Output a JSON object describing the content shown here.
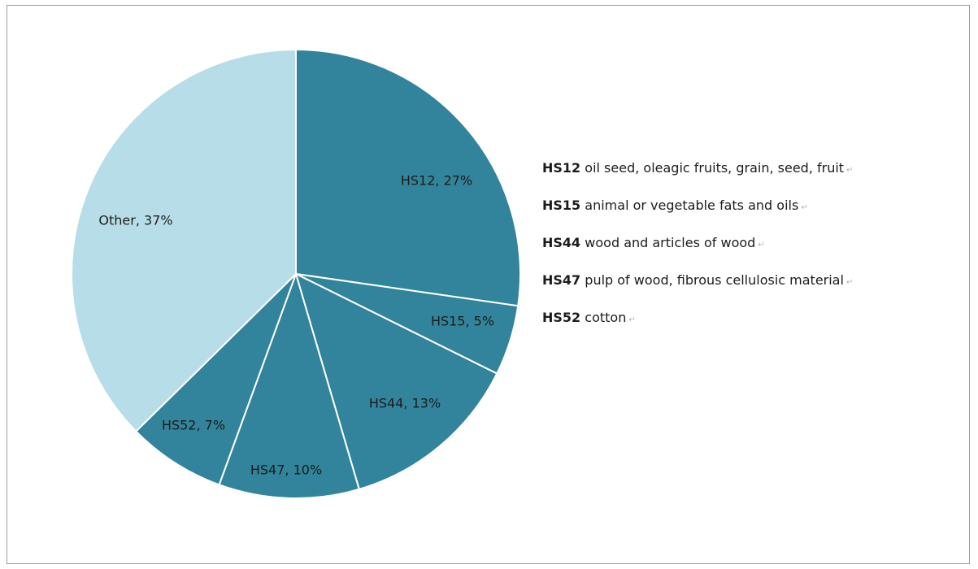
{
  "chart_data": {
    "type": "pie",
    "slices": [
      {
        "label": "HS12",
        "value": 27,
        "display": "HS12, 27%",
        "color": "#31849b"
      },
      {
        "label": "HS15",
        "value": 5,
        "display": "HS15, 5%",
        "color": "#31849b"
      },
      {
        "label": "HS44",
        "value": 13,
        "display": "HS44, 13%",
        "color": "#31849b"
      },
      {
        "label": "HS47",
        "value": 10,
        "display": "HS47, 10%",
        "color": "#31849b"
      },
      {
        "label": "HS52",
        "value": 7,
        "display": "HS52, 7%",
        "color": "#31849b"
      },
      {
        "label": "Other",
        "value": 37,
        "display": "Other, 37%",
        "color": "#b7dde8"
      }
    ],
    "start_angle_deg": 0,
    "direction": "clockwise",
    "slice_border_color": "#ffffff"
  },
  "legend": [
    {
      "code": "HS12",
      "text": "oil seed, oleagic fruits, grain, seed, fruit",
      "mark": "↵"
    },
    {
      "code": "HS15",
      "text": "animal or vegetable fats and oils",
      "mark": "↵"
    },
    {
      "code": "HS44",
      "text": "wood and articles of wood",
      "mark": "↵"
    },
    {
      "code": "HS47",
      "text": "pulp of wood, fibrous cellulosic material",
      "mark": "↵"
    },
    {
      "code": "HS52",
      "text": "cotton",
      "mark": "↵"
    }
  ]
}
